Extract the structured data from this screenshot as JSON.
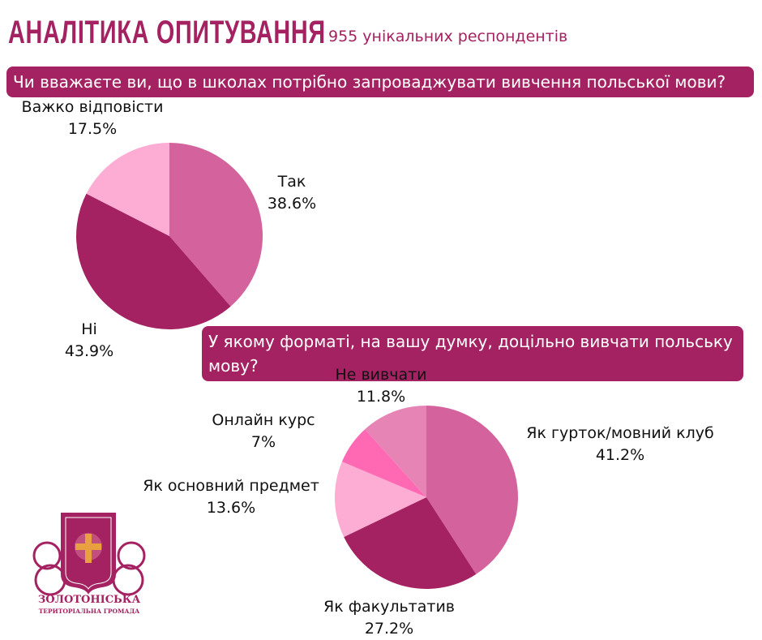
{
  "header": {
    "title": "АНАЛІТИКА ОПИТУВАННЯ",
    "subtitle": "955 унікальних респондентів"
  },
  "logo": {
    "text1": "ЗОЛОТОНІСЬКА",
    "text2": "ТЕРИТОРІАЛЬНА ГРОМАДА"
  },
  "chart_data": [
    {
      "type": "pie",
      "title": "Чи вважаєте ви, що в школах потрібно запроваджувати вивчення польської мови?",
      "slices": [
        {
          "label": "Так",
          "value": 38.6,
          "display": "38.6%",
          "color": "#D4629C"
        },
        {
          "label": "Ні",
          "value": 43.9,
          "display": "43.9%",
          "color": "#A52262"
        },
        {
          "label": "Важко відповісти",
          "value": 17.5,
          "display": "17.5%",
          "color": "#FDACD4"
        }
      ]
    },
    {
      "type": "pie",
      "title": "У якому форматі, на вашу думку, доцільно вивчати польську мову?",
      "slices": [
        {
          "label": "Як гурток/мовний клуб",
          "value": 41.2,
          "display": "41.2%",
          "color": "#D4629C"
        },
        {
          "label": "Як факультатив",
          "value": 27.2,
          "display": "27.2%",
          "color": "#A52262"
        },
        {
          "label": "Як основний предмет",
          "value": 13.6,
          "display": "13.6%",
          "color": "#FDACD4"
        },
        {
          "label": "Онлайн курс",
          "value": 7,
          "display": "7%",
          "color": "#FF69B4"
        },
        {
          "label": "Не вивчати",
          "value": 11.8,
          "display": "11.8%",
          "color": "#E685B5"
        }
      ]
    }
  ]
}
